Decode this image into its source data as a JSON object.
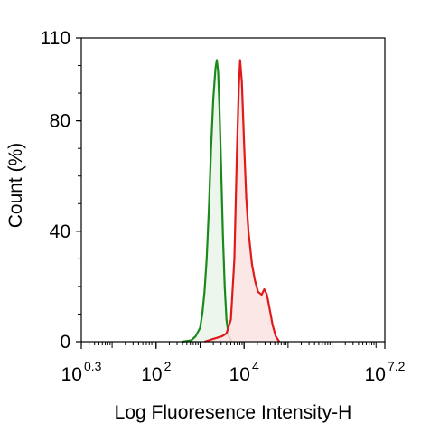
{
  "chart_data": {
    "type": "area",
    "xlabel": "Log Fluoresence Intensity-H",
    "ylabel": "Count  (%)",
    "x_scale": "log10",
    "xlim_exp": [
      0.3,
      7.2
    ],
    "ylim": [
      0,
      110
    ],
    "y_ticks": [
      {
        "value": 0,
        "label": "0"
      },
      {
        "value": 40,
        "label": "40"
      },
      {
        "value": 80,
        "label": "80"
      },
      {
        "value": 110,
        "label": "110"
      }
    ],
    "x_ticks": [
      {
        "exp": 0.3,
        "base": "10",
        "sup": "0.3"
      },
      {
        "exp": 2,
        "base": "10",
        "sup": "2"
      },
      {
        "exp": 4,
        "base": "10",
        "sup": "4"
      },
      {
        "exp": 7.2,
        "base": "10",
        "sup": "7.2"
      }
    ],
    "grid": false,
    "series": [
      {
        "color": "#1a8a1a",
        "fill": "#eaf5ea",
        "points": [
          [
            2.6,
            0
          ],
          [
            2.8,
            0.5
          ],
          [
            2.9,
            2
          ],
          [
            3.0,
            5
          ],
          [
            3.05,
            10
          ],
          [
            3.1,
            18
          ],
          [
            3.15,
            30
          ],
          [
            3.2,
            48
          ],
          [
            3.25,
            70
          ],
          [
            3.3,
            88
          ],
          [
            3.35,
            99
          ],
          [
            3.38,
            102
          ],
          [
            3.41,
            98
          ],
          [
            3.44,
            85
          ],
          [
            3.48,
            62
          ],
          [
            3.52,
            38
          ],
          [
            3.56,
            20
          ],
          [
            3.6,
            8
          ],
          [
            3.65,
            2
          ],
          [
            3.72,
            0
          ]
        ]
      },
      {
        "color": "#e01a1a",
        "fill": "#fbe3e3",
        "points": [
          [
            3.1,
            0
          ],
          [
            3.3,
            1
          ],
          [
            3.5,
            2
          ],
          [
            3.6,
            3
          ],
          [
            3.7,
            8
          ],
          [
            3.78,
            30
          ],
          [
            3.84,
            70
          ],
          [
            3.88,
            92
          ],
          [
            3.91,
            102
          ],
          [
            3.95,
            94
          ],
          [
            4.0,
            72
          ],
          [
            4.05,
            52
          ],
          [
            4.1,
            40
          ],
          [
            4.18,
            28
          ],
          [
            4.25,
            22
          ],
          [
            4.32,
            18
          ],
          [
            4.4,
            17
          ],
          [
            4.46,
            19
          ],
          [
            4.52,
            17
          ],
          [
            4.58,
            12
          ],
          [
            4.65,
            6
          ],
          [
            4.72,
            2
          ],
          [
            4.8,
            0
          ]
        ]
      }
    ]
  }
}
